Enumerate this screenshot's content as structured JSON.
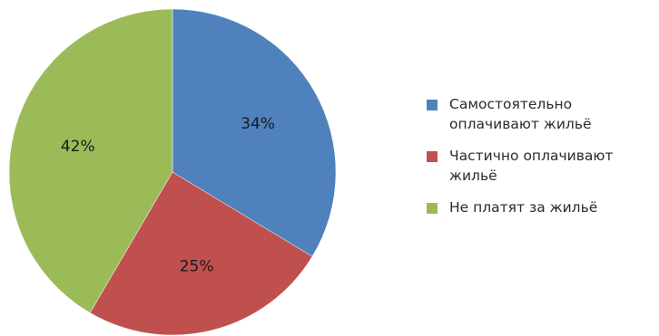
{
  "chart_data": {
    "type": "pie",
    "title": "",
    "slices": [
      {
        "label": "Самостоятельно\nоплачивают жильё",
        "value": 34,
        "display": "34%",
        "color": "#4f81bd"
      },
      {
        "label": "Частично оплачивают\nжильё",
        "value": 25,
        "display": "25%",
        "color": "#c0504d"
      },
      {
        "label": "Не платят за жильё",
        "value": 42,
        "display": "42%",
        "color": "#9bbb59"
      }
    ],
    "legend_position": "right"
  }
}
